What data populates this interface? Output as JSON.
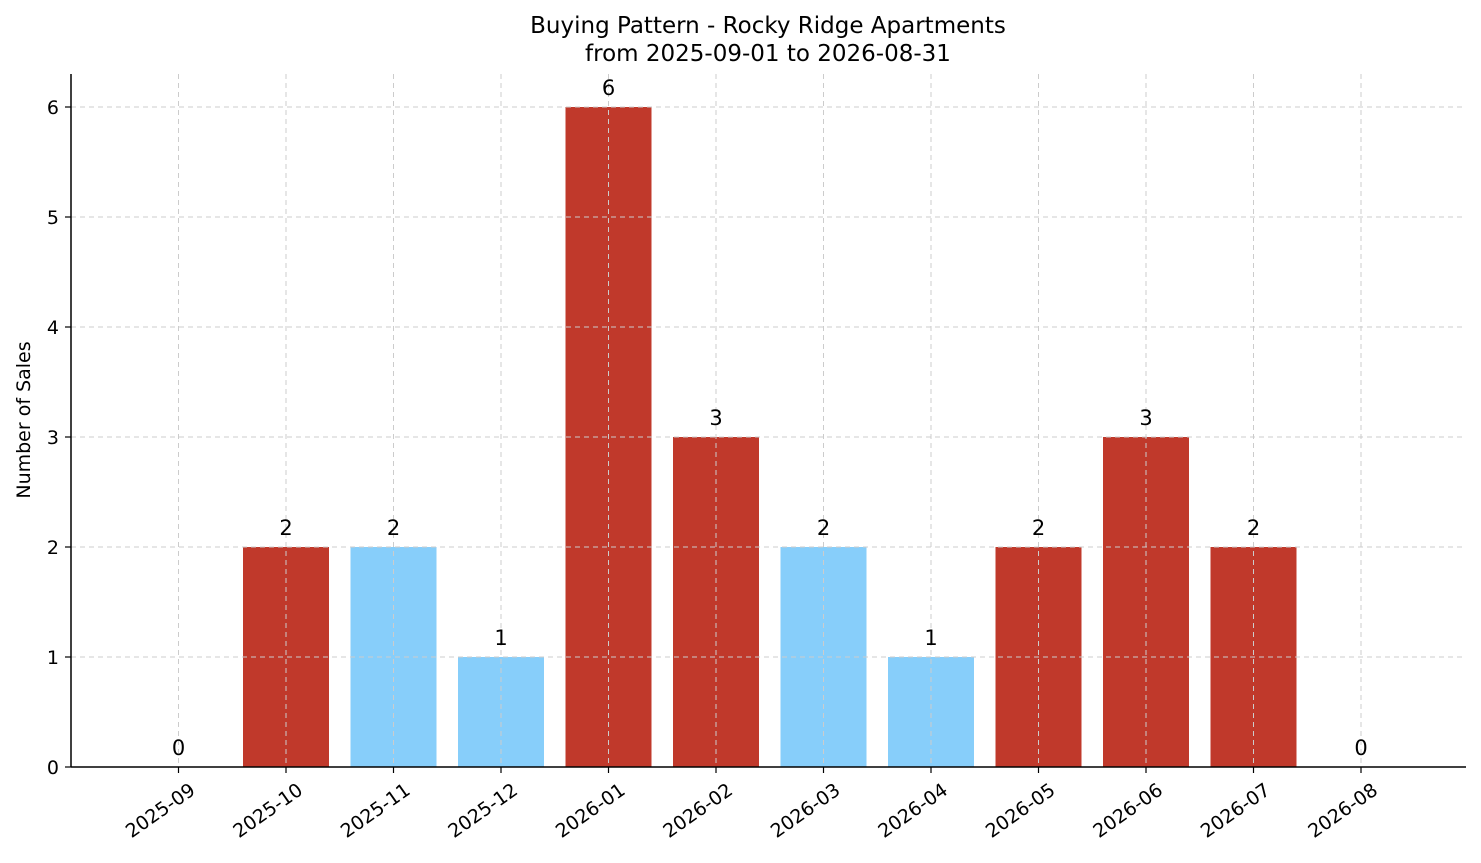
{
  "chart_data": {
    "type": "bar",
    "title": "Buying Pattern - Rocky Ridge Apartments",
    "subtitle": "from 2025-09-01 to 2026-08-31",
    "xlabel": "",
    "ylabel": "Number of Sales",
    "ylim": [
      0,
      6.3
    ],
    "yticks": [
      0,
      1,
      2,
      3,
      4,
      5,
      6
    ],
    "grid": true,
    "categories": [
      "2025-09",
      "2025-10",
      "2025-11",
      "2025-12",
      "2026-01",
      "2026-02",
      "2026-03",
      "2026-04",
      "2026-05",
      "2026-06",
      "2026-07",
      "2026-08"
    ],
    "values": [
      0,
      2,
      2,
      1,
      6,
      3,
      2,
      1,
      2,
      3,
      2,
      0
    ],
    "bar_colors": [
      "#c0392b",
      "#c0392b",
      "#87cefa",
      "#87cefa",
      "#c0392b",
      "#c0392b",
      "#87cefa",
      "#87cefa",
      "#c0392b",
      "#c0392b",
      "#c0392b",
      "#c0392b"
    ],
    "data_labels": [
      "0",
      "2",
      "2",
      "1",
      "6",
      "3",
      "2",
      "1",
      "2",
      "3",
      "2",
      "0"
    ]
  }
}
